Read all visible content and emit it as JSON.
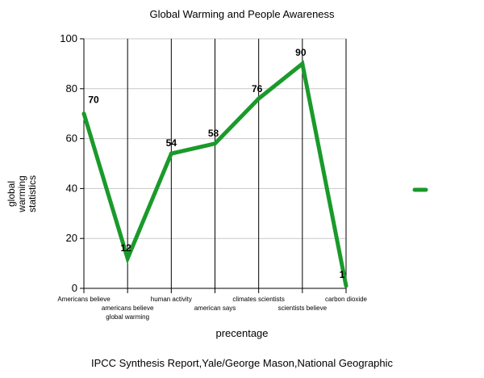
{
  "chart_data": {
    "type": "line",
    "title": "Global Warming and People Awareness",
    "xlabel": "precentage",
    "ylabel": [
      "global",
      "warming",
      "statistics"
    ],
    "footer": "IPCC Synthesis Report,Yale/George Mason,National Geographic",
    "ylim": [
      0,
      100
    ],
    "yticks": [
      0,
      20,
      40,
      60,
      80,
      100
    ],
    "grid": true,
    "legend": "right",
    "series": [
      {
        "name": "",
        "color": "#1a9a2a",
        "categories": [
          [
            "Americans believe"
          ],
          [
            "americans believe",
            "global warming"
          ],
          [
            "human activity"
          ],
          [
            "american says"
          ],
          [
            "climates scientists"
          ],
          [
            "scientists believe"
          ],
          [
            "carbon dioxide"
          ]
        ],
        "values": [
          70,
          12,
          54,
          58,
          76,
          90,
          1
        ]
      }
    ]
  }
}
